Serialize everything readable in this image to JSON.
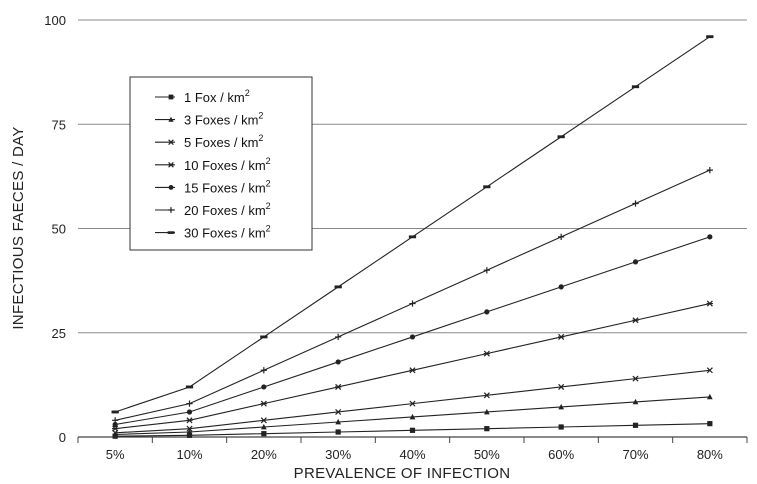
{
  "chart_data": {
    "type": "line",
    "title": "",
    "xlabel": "PREVALENCE OF INFECTION",
    "ylabel": "INFECTIOUS FAECES / DAY",
    "categories": [
      "5%",
      "10%",
      "20%",
      "30%",
      "40%",
      "50%",
      "60%",
      "70%",
      "80%"
    ],
    "y_ticks": [
      "0",
      "25",
      "50",
      "75",
      "100"
    ],
    "ylim": [
      0,
      100
    ],
    "grid": "horizontal",
    "legend_position": "top-left",
    "legend_unit": "/ km",
    "legend_unit_sup": "2",
    "series": [
      {
        "name": "1 Fox",
        "marker": "square",
        "values": [
          0.2,
          0.4,
          0.8,
          1.2,
          1.6,
          2.0,
          2.4,
          2.8,
          3.2
        ]
      },
      {
        "name": "3 Foxes",
        "marker": "triangle",
        "values": [
          0.6,
          1.2,
          2.4,
          3.6,
          4.8,
          6.0,
          7.2,
          8.4,
          9.6
        ]
      },
      {
        "name": "5 Foxes",
        "marker": "x",
        "values": [
          1.0,
          2.0,
          4.0,
          6.0,
          8.0,
          10.0,
          12.0,
          14.0,
          16.0
        ]
      },
      {
        "name": "10 Foxes",
        "marker": "star",
        "values": [
          2.0,
          4.0,
          8.0,
          12.0,
          16.0,
          20.0,
          24.0,
          28.0,
          32.0
        ]
      },
      {
        "name": "15 Foxes",
        "marker": "circle",
        "values": [
          3.0,
          6.0,
          12.0,
          18.0,
          24.0,
          30.0,
          36.0,
          42.0,
          48.0
        ]
      },
      {
        "name": "20 Foxes",
        "marker": "plus",
        "values": [
          4.0,
          8.0,
          16.0,
          24.0,
          32.0,
          40.0,
          48.0,
          56.0,
          64.0
        ]
      },
      {
        "name": "30 Foxes",
        "marker": "dash",
        "values": [
          6.0,
          12.0,
          24.0,
          36.0,
          48.0,
          60.0,
          72.0,
          84.0,
          96.0
        ]
      }
    ],
    "colors": {
      "line": "#222222",
      "grid": "#8a8a8a",
      "axis": "#444444"
    }
  }
}
